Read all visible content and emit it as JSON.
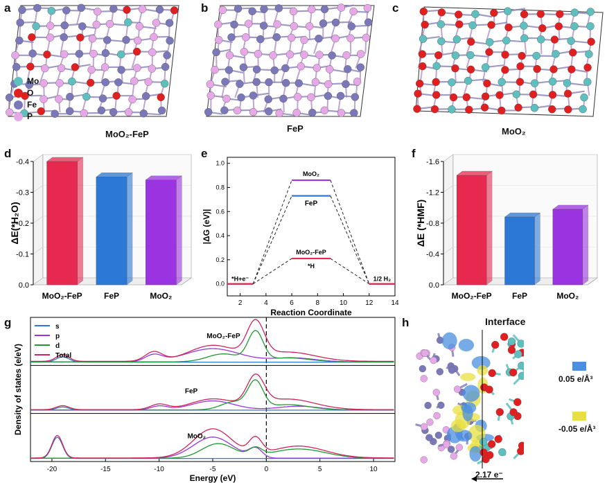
{
  "panels": {
    "a": {
      "label": "a",
      "caption": "MoO₂-FeP"
    },
    "b": {
      "label": "b",
      "caption": "FeP"
    },
    "c": {
      "label": "c",
      "caption": "MoO₂"
    },
    "d": {
      "label": "d"
    },
    "e": {
      "label": "e"
    },
    "f": {
      "label": "f"
    },
    "g": {
      "label": "g"
    },
    "h": {
      "label": "h",
      "title": "Interface",
      "charge_transfer": "2.17 e⁻",
      "pos_iso": "0.05 e/Å³",
      "neg_iso": "-0.05 e/Å³"
    }
  },
  "atom_legend": [
    {
      "symbol": "Mo",
      "color": "#5fbfbf"
    },
    {
      "symbol": "O",
      "color": "#e02020"
    },
    {
      "symbol": "Fe",
      "color": "#7a78b8"
    },
    {
      "symbol": "P",
      "color": "#e6a8e6"
    }
  ],
  "colors": {
    "mo": "#5fbfbf",
    "o": "#e02020",
    "fe": "#7a78b8",
    "p": "#e6a8e6",
    "red_bar": "#e8294f",
    "blue_bar": "#2b78d6",
    "purple_bar": "#9a34e0",
    "iso_pos": "#4a8fe0",
    "iso_neg": "#e8e040"
  },
  "chart_data": [
    {
      "id": "d",
      "type": "bar",
      "categories": [
        "MoO₂-FeP",
        "FeP",
        "MoO₂"
      ],
      "values": [
        -0.4,
        -0.35,
        -0.34
      ],
      "ylabel": "ΔE(*H₂O)",
      "ylim": [
        0,
        -0.4
      ],
      "yticks": [
        "0.0",
        "-0.1",
        "-0.2",
        "-0.3",
        "-0.4"
      ]
    },
    {
      "id": "e",
      "type": "line",
      "xlabel": "Reaction Coordinate",
      "ylabel": "|ΔG (eV)|",
      "xlim": [
        1,
        14
      ],
      "ylim": [
        -0.1,
        1.05
      ],
      "xticks": [
        "2",
        "4",
        "6",
        "8",
        "10",
        "12",
        "14"
      ],
      "yticks": [
        "0.0",
        "0.2",
        "0.4",
        "0.6",
        "0.8",
        "1.0"
      ],
      "series": [
        {
          "name": "MoO₂",
          "color": "#9a34e0",
          "levels": [
            0.0,
            0.86,
            0.0
          ]
        },
        {
          "name": "FeP",
          "color": "#2b78d6",
          "levels": [
            0.0,
            0.73,
            0.0
          ]
        },
        {
          "name": "MoO₂-FeP",
          "color": "#e8294f",
          "levels": [
            0.0,
            0.21,
            0.0
          ]
        }
      ],
      "state_labels": [
        "*H+e⁻",
        "*H",
        "1/2 H₂"
      ]
    },
    {
      "id": "f",
      "type": "bar",
      "categories": [
        "MoO₂-FeP",
        "FeP",
        "MoO₂"
      ],
      "values": [
        -1.42,
        -0.88,
        -0.98
      ],
      "ylabel": "ΔE (*HMF)",
      "ylim": [
        0,
        -1.6
      ],
      "yticks": [
        "0.0",
        "-0.4",
        "-0.8",
        "-1.2",
        "-1.6"
      ]
    },
    {
      "id": "g",
      "type": "line",
      "xlabel": "Energy (eV)",
      "ylabel": "Density of states (e/eV)",
      "xlim": [
        -22,
        12
      ],
      "xticks": [
        "-20",
        "-15",
        "-10",
        "-5",
        "0",
        "5",
        "10"
      ],
      "legend": [
        "s",
        "p",
        "d",
        "Total"
      ],
      "legend_colors": [
        "#2b78d6",
        "#9a34e0",
        "#1f9a2f",
        "#d0245c"
      ],
      "subplots": [
        "MoO₂-FeP",
        "FeP",
        "MoO₂"
      ]
    }
  ]
}
